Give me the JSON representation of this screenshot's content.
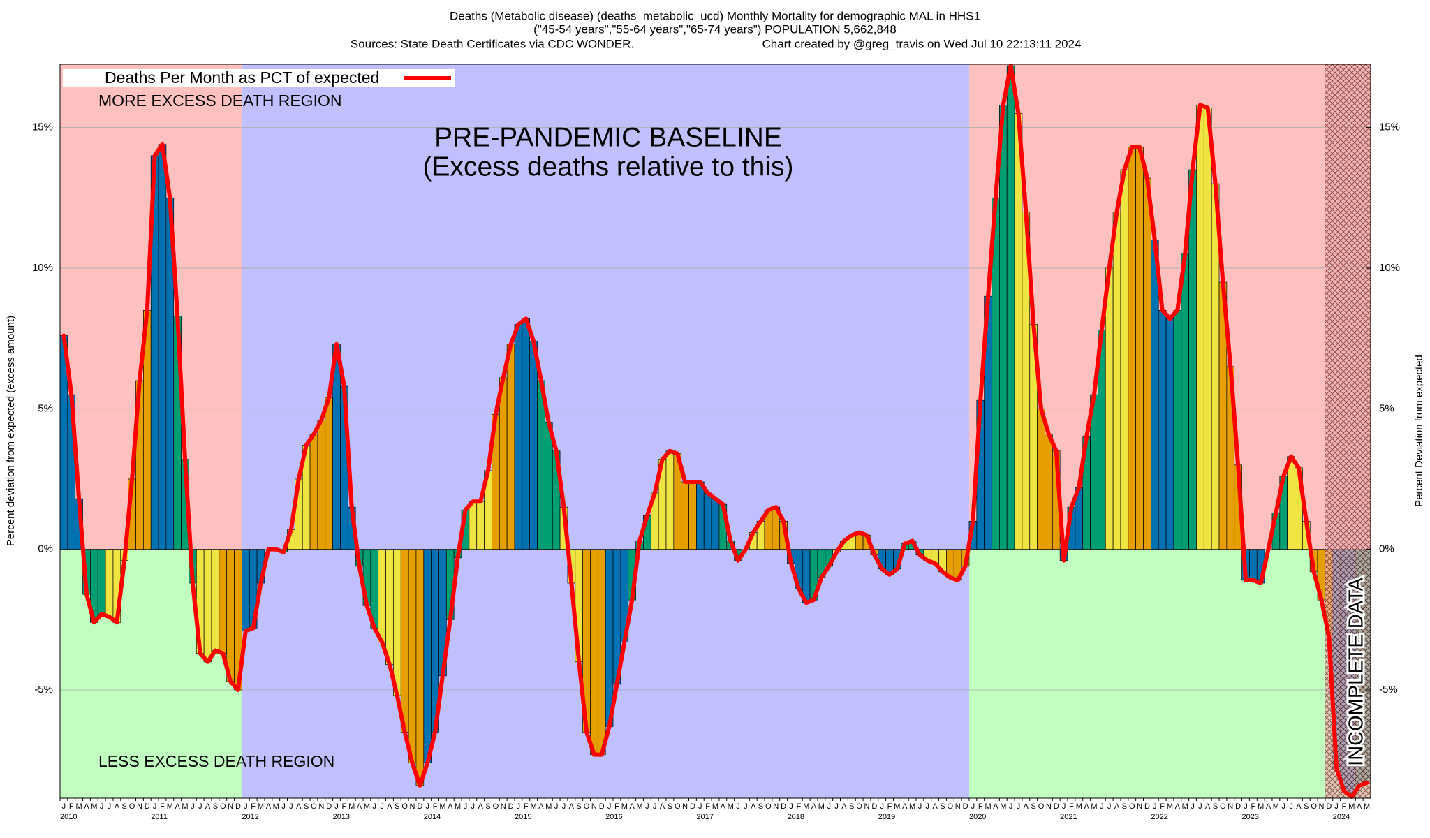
{
  "chart_data": {
    "type": "bar-line",
    "title": "Deaths (Metabolic disease) (deaths_metabolic_ucd) Monthly Mortality for demographic MAL in HHS1",
    "subtitle": "(\"45-54 years\",\"55-64 years\",\"65-74 years\") POPULATION 5,662,848",
    "source": "Sources: State Death Certificates via CDC WONDER.",
    "credit": "Chart created by @greg_travis on Wed Jul 10 22:13:11 2024",
    "ylabel": "Percent deviation from expected (excess amount)",
    "y2label": "Percent Deviation from expected",
    "categories": [
      "J",
      "F",
      "M",
      "A",
      "M",
      "J",
      "J",
      "A",
      "S",
      "O",
      "N",
      "D",
      "J",
      "F",
      "M",
      "A",
      "M",
      "J",
      "J",
      "A",
      "S",
      "O",
      "N",
      "D",
      "J",
      "F",
      "M",
      "A",
      "M",
      "J",
      "J",
      "A",
      "S",
      "O",
      "N",
      "D",
      "J",
      "F",
      "M",
      "A",
      "M",
      "J",
      "J",
      "A",
      "S",
      "O",
      "N",
      "D",
      "J",
      "F",
      "M",
      "A",
      "M",
      "J",
      "J",
      "A",
      "S",
      "O",
      "N",
      "D",
      "J",
      "F",
      "M",
      "A",
      "M",
      "J",
      "J",
      "A",
      "S",
      "O",
      "N",
      "D",
      "J",
      "F",
      "M",
      "A",
      "M",
      "J",
      "J",
      "A",
      "S",
      "O",
      "N",
      "D",
      "J",
      "F",
      "M",
      "A",
      "M",
      "J",
      "J",
      "A",
      "S",
      "O",
      "N",
      "D",
      "J",
      "F",
      "M",
      "A",
      "M",
      "J",
      "J",
      "A",
      "S",
      "O",
      "N",
      "D",
      "J",
      "F",
      "M",
      "A",
      "M",
      "J",
      "J",
      "A",
      "S",
      "O",
      "N",
      "D",
      "J",
      "F",
      "M",
      "A",
      "M",
      "J",
      "J",
      "A",
      "S",
      "O",
      "N",
      "D",
      "J",
      "F",
      "M",
      "A",
      "M",
      "J",
      "J",
      "A",
      "S",
      "O",
      "N",
      "D",
      "J",
      "F",
      "M",
      "A",
      "M",
      "J",
      "J",
      "A",
      "S",
      "O",
      "N",
      "D",
      "J",
      "F",
      "M",
      "A",
      "M",
      "J",
      "J",
      "A",
      "S",
      "O",
      "N",
      "D",
      "J",
      "F",
      "M",
      "A",
      "M"
    ],
    "year_labels": [
      2010,
      2011,
      2012,
      2013,
      2014,
      2015,
      2016,
      2017,
      2018,
      2019,
      2020,
      2021,
      2022,
      2023,
      2024
    ],
    "series": [
      {
        "name": "Deaths Per Month as PCT of expected",
        "color": "#ff0000",
        "values": [
          7.6,
          5.5,
          1.8,
          -1.6,
          -2.6,
          -2.3,
          -2.4,
          -2.6,
          -0.4,
          2.5,
          6.0,
          8.5,
          14.0,
          14.4,
          12.5,
          8.3,
          3.2,
          -1.2,
          -3.7,
          -4.0,
          -3.6,
          -3.7,
          -4.7,
          -5.0,
          -2.9,
          -2.8,
          -1.2,
          0.0,
          0.0,
          -0.1,
          0.7,
          2.5,
          3.7,
          4.1,
          4.6,
          5.4,
          7.3,
          5.8,
          1.5,
          -0.6,
          -2.0,
          -2.8,
          -3.3,
          -4.1,
          -5.2,
          -6.5,
          -7.6,
          -8.4,
          -7.6,
          -6.5,
          -4.5,
          -2.5,
          -0.3,
          1.4,
          1.7,
          1.7,
          2.8,
          4.8,
          6.1,
          7.3,
          8.0,
          8.2,
          7.4,
          6.0,
          4.5,
          3.5,
          1.5,
          -1.2,
          -4.0,
          -6.5,
          -7.3,
          -7.3,
          -6.3,
          -4.8,
          -3.3,
          -1.8,
          0.3,
          1.2,
          2.0,
          3.2,
          3.5,
          3.4,
          2.4,
          2.4,
          2.4,
          2.0,
          1.8,
          1.6,
          0.3,
          -0.4,
          0.0,
          0.6,
          1.0,
          1.4,
          1.5,
          1.0,
          -0.5,
          -1.4,
          -1.9,
          -1.8,
          -1.0,
          -0.6,
          -0.1,
          0.3,
          0.5,
          0.6,
          0.5,
          -0.2,
          -0.7,
          -0.9,
          -0.7,
          0.2,
          0.3,
          -0.2,
          -0.4,
          -0.5,
          -0.8,
          -1.0,
          -1.1,
          -0.6,
          1.0,
          5.3,
          9.0,
          12.5,
          15.8,
          17.2,
          15.5,
          12.0,
          8.0,
          5.0,
          4.1,
          3.5,
          -0.4,
          1.5,
          2.2,
          4.0,
          5.5,
          7.8,
          10.0,
          12.0,
          13.5,
          14.3,
          14.3,
          13.2,
          11.0,
          8.5,
          8.2,
          8.5,
          10.5,
          13.5,
          15.8,
          15.7,
          13.0,
          9.5,
          6.5,
          3.0,
          -1.1,
          -1.1,
          -1.2,
          0.0,
          1.3,
          2.6,
          3.3,
          2.9,
          1.0,
          -0.8,
          -1.8,
          -3.1,
          -7.8,
          -8.6,
          -8.8,
          -8.4,
          -8.3
        ]
      }
    ],
    "bar_colors": [
      "#0072b2",
      "#009e73",
      "#f0e442",
      "#e69f00"
    ],
    "ylim": [
      -8.85,
      17.25
    ],
    "yticks": [
      {
        "value": -5,
        "label": "-5%"
      },
      {
        "value": 0,
        "label": "0%"
      },
      {
        "value": 5,
        "label": "5%"
      },
      {
        "value": 10,
        "label": "10%"
      },
      {
        "value": 15,
        "label": "15%"
      }
    ],
    "y2lim": [
      -8.85,
      17.25
    ],
    "y2ticks": [
      {
        "value": -5,
        "label": "-5%"
      },
      {
        "value": 0,
        "label": "0%"
      },
      {
        "value": 5,
        "label": "5%"
      },
      {
        "value": 10,
        "label": "10%"
      },
      {
        "value": 15,
        "label": "15%"
      }
    ],
    "grid": true,
    "legend": "top-left",
    "annotations": [
      "MORE EXCESS DEATH REGION",
      "LESS EXCESS DEATH REGION",
      "PRE-PANDEMIC BASELINE",
      "(Excess deaths relative to this)",
      "INCOMPLETE DATA"
    ]
  }
}
